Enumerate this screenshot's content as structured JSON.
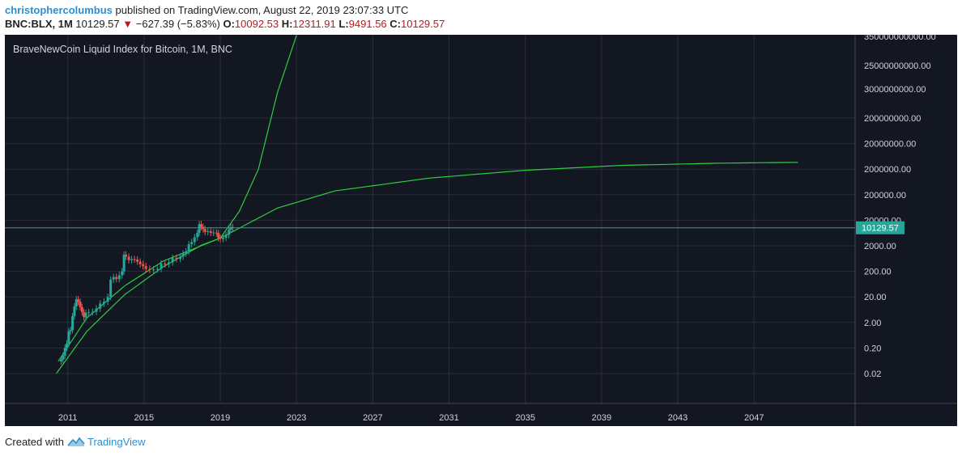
{
  "header": {
    "author": "christophercolumbus",
    "published_text": "published on TradingView.com, August 22, 2019 23:07:33 UTC",
    "symbol": "BNC:BLX, 1M",
    "last": "10129.57",
    "down_arrow": "▼",
    "change": "−627.39 (−5.83%)",
    "o_label": "O:",
    "o_value": "10092.53",
    "h_label": "H:",
    "h_value": "12311.91",
    "l_label": "L:",
    "l_value": "9491.56",
    "c_label": "C:",
    "c_value": "10129.57"
  },
  "footer": {
    "created_with": "Created with",
    "brand": "TradingView",
    "logo_icon": "tradingview-logo-icon"
  },
  "colors": {
    "background": "#131722",
    "grid": "#2a2e39",
    "up_candle": "#26a69a",
    "down_candle": "#ef5350",
    "curve": "#2ecc40",
    "price_tag": "#26a69a"
  },
  "chart_data": {
    "type": "candlestick",
    "title": "BraveNewCoin Liquid Index for Bitcoin, 1M, BNC",
    "y_scale": "log",
    "y_ticks": [
      "350000000000.00",
      "25000000000.00",
      "3000000000.00",
      "200000000.00",
      "20000000.00",
      "2000000.00",
      "200000.00",
      "20000.00",
      "2000.00",
      "200.00",
      "20.00",
      "2.00",
      "0.20",
      "0.02"
    ],
    "y_tick_values": [
      350000000000.0,
      25000000000.0,
      3000000000.0,
      200000000.0,
      20000000.0,
      2000000.0,
      200000.0,
      20000.0,
      2000,
      200,
      20,
      2,
      0.2,
      0.02
    ],
    "x_ticks": [
      "2011",
      "2015",
      "2019",
      "2023",
      "2027",
      "2031",
      "2035",
      "2039",
      "2043",
      "2047"
    ],
    "x_range": [
      2007.7,
      2052.3
    ],
    "last_price": "10129.57",
    "series": [
      {
        "kind": "price",
        "points": [
          [
            2010.55,
            0.06
          ],
          [
            2010.65,
            0.07
          ],
          [
            2010.75,
            0.1
          ],
          [
            2010.85,
            0.2
          ],
          [
            2010.95,
            0.3
          ],
          [
            2011.05,
            0.9
          ],
          [
            2011.15,
            1.0
          ],
          [
            2011.25,
            3.5
          ],
          [
            2011.35,
            8.5
          ],
          [
            2011.45,
            16
          ],
          [
            2011.55,
            13
          ],
          [
            2011.65,
            8
          ],
          [
            2011.75,
            5
          ],
          [
            2011.85,
            3.2
          ],
          [
            2011.95,
            4.7
          ],
          [
            2012.1,
            5
          ],
          [
            2012.3,
            5.2
          ],
          [
            2012.5,
            7
          ],
          [
            2012.7,
            11
          ],
          [
            2012.9,
            13
          ],
          [
            2013.1,
            20
          ],
          [
            2013.25,
            95
          ],
          [
            2013.4,
            120
          ],
          [
            2013.55,
            100
          ],
          [
            2013.7,
            140
          ],
          [
            2013.85,
            200
          ],
          [
            2013.95,
            900
          ],
          [
            2014.05,
            750
          ],
          [
            2014.2,
            550
          ],
          [
            2014.35,
            600
          ],
          [
            2014.5,
            580
          ],
          [
            2014.65,
            480
          ],
          [
            2014.8,
            380
          ],
          [
            2014.95,
            320
          ],
          [
            2015.1,
            250
          ],
          [
            2015.3,
            230
          ],
          [
            2015.5,
            240
          ],
          [
            2015.7,
            250
          ],
          [
            2015.9,
            400
          ],
          [
            2016.1,
            380
          ],
          [
            2016.3,
            450
          ],
          [
            2016.5,
            670
          ],
          [
            2016.7,
            610
          ],
          [
            2016.9,
            750
          ],
          [
            2017.05,
            1000
          ],
          [
            2017.2,
            1200
          ],
          [
            2017.35,
            2300
          ],
          [
            2017.5,
            2800
          ],
          [
            2017.65,
            4300
          ],
          [
            2017.8,
            6400
          ],
          [
            2017.9,
            14000
          ],
          [
            2018.0,
            11000
          ],
          [
            2018.1,
            9000
          ],
          [
            2018.2,
            7000
          ],
          [
            2018.35,
            7500
          ],
          [
            2018.5,
            6400
          ],
          [
            2018.65,
            6600
          ],
          [
            2018.8,
            6300
          ],
          [
            2018.9,
            4000
          ],
          [
            2019.0,
            3700
          ],
          [
            2019.15,
            4100
          ],
          [
            2019.3,
            5300
          ],
          [
            2019.45,
            8500
          ],
          [
            2019.55,
            10800
          ],
          [
            2019.65,
            10129.57
          ]
        ]
      },
      {
        "kind": "curve",
        "label": "",
        "points": [
          [
            2010.5,
            0.06
          ],
          [
            2012,
            3
          ],
          [
            2014,
            55
          ],
          [
            2016,
            500
          ],
          [
            2019,
            4000
          ],
          [
            2022,
            60000
          ],
          [
            2025,
            280000
          ],
          [
            2030,
            900000
          ],
          [
            2035,
            1800000
          ],
          [
            2040,
            2800000
          ],
          [
            2045,
            3400000
          ],
          [
            2049.3,
            3700000
          ]
        ]
      },
      {
        "kind": "curve",
        "label": "",
        "points": [
          [
            2010.4,
            0.02
          ],
          [
            2012,
            0.9
          ],
          [
            2014,
            25
          ],
          [
            2016,
            300
          ],
          [
            2018,
            2100
          ],
          [
            2019,
            4000
          ],
          [
            2020,
            45000
          ],
          [
            2021,
            2000000
          ],
          [
            2022,
            2000000000
          ],
          [
            2023,
            350000000000
          ]
        ]
      }
    ]
  }
}
